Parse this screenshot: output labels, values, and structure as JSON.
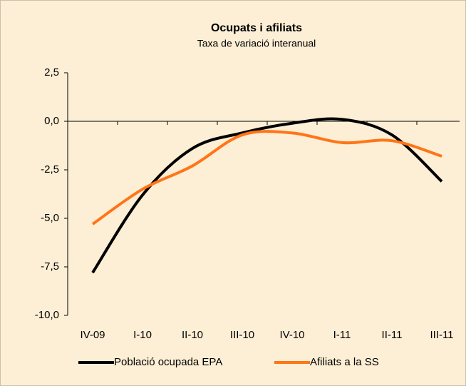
{
  "chart_data": {
    "type": "line",
    "title": "Ocupats i afiliats",
    "subtitle": "Taxa de variació interanual",
    "categories": [
      "IV-09",
      "I-10",
      "II-10",
      "III-10",
      "IV-10",
      "I-11",
      "II-11",
      "III-11"
    ],
    "series": [
      {
        "name": "Població ocupada EPA",
        "color": "#000000",
        "values": [
          -7.8,
          -3.8,
          -1.4,
          -0.6,
          -0.1,
          0.1,
          -0.7,
          -3.1
        ]
      },
      {
        "name": "Afiliats a la SS",
        "color": "#ff7518",
        "values": [
          -5.3,
          -3.5,
          -2.3,
          -0.7,
          -0.6,
          -1.1,
          -1.0,
          -1.8
        ]
      }
    ],
    "ylim": [
      -10,
      2.5
    ],
    "yticks": [
      {
        "value": -10,
        "label": "-10,0"
      },
      {
        "value": -7.5,
        "label": "-7,5"
      },
      {
        "value": -5,
        "label": "-5,0"
      },
      {
        "value": -2.5,
        "label": "-2,5"
      },
      {
        "value": 0,
        "label": "0,0"
      },
      {
        "value": 2.5,
        "label": "2,5"
      }
    ],
    "legend": "bottom"
  }
}
